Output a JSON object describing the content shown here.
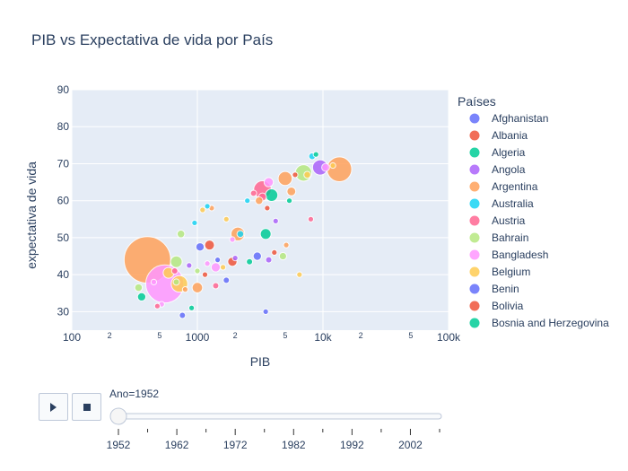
{
  "chart_data": {
    "type": "scatter",
    "title": "PIB vs Expectativa de vida por País",
    "xlabel": "PIB",
    "ylabel": "expectativa de vida",
    "x_scale": "log",
    "xlim": [
      100,
      100000
    ],
    "ylim": [
      25,
      90
    ],
    "x_ticks": [
      "100",
      "1000",
      "10k",
      "100k"
    ],
    "x_minor_ticks": [
      "2",
      "5"
    ],
    "y_ticks": [
      "30",
      "40",
      "50",
      "60",
      "70",
      "80",
      "90"
    ],
    "legend_title": "Países",
    "legend_position": "right",
    "legend": [
      {
        "name": "Afghanistan",
        "color": "#636efa"
      },
      {
        "name": "Albania",
        "color": "#EF553B"
      },
      {
        "name": "Algeria",
        "color": "#00cc96"
      },
      {
        "name": "Angola",
        "color": "#ab63fa"
      },
      {
        "name": "Argentina",
        "color": "#FFA15A"
      },
      {
        "name": "Australia",
        "color": "#19d3f3"
      },
      {
        "name": "Austria",
        "color": "#FF6692"
      },
      {
        "name": "Bahrain",
        "color": "#B6E880"
      },
      {
        "name": "Bangladesh",
        "color": "#FF97FF"
      },
      {
        "name": "Belgium",
        "color": "#FECB52"
      },
      {
        "name": "Benin",
        "color": "#636efa"
      },
      {
        "name": "Bolivia",
        "color": "#EF553B"
      },
      {
        "name": "Bosnia and Herzegovina",
        "color": "#00cc96"
      }
    ],
    "points": [
      {
        "x": 400,
        "y": 44,
        "s": 556,
        "c": "#FFA15A"
      },
      {
        "x": 550,
        "y": 37.5,
        "s": 372,
        "c": "#FF97FF"
      },
      {
        "x": 13500,
        "y": 68.5,
        "s": 158,
        "c": "#FFA15A"
      },
      {
        "x": 3300,
        "y": 63,
        "s": 80,
        "c": "#FF6692"
      },
      {
        "x": 7000,
        "y": 67.5,
        "s": 70,
        "c": "#B6E880"
      },
      {
        "x": 9500,
        "y": 69,
        "s": 60,
        "c": "#ab63fa"
      },
      {
        "x": 5000,
        "y": 66,
        "s": 50,
        "c": "#FFA15A"
      },
      {
        "x": 2100,
        "y": 51,
        "s": 48,
        "c": "#FFA15A"
      },
      {
        "x": 3900,
        "y": 61.5,
        "s": 40,
        "c": "#00cc96"
      },
      {
        "x": 720,
        "y": 37.5,
        "s": 70,
        "c": "#FECB52"
      },
      {
        "x": 680,
        "y": 43.5,
        "s": 35,
        "c": "#B6E880"
      },
      {
        "x": 590,
        "y": 40.5,
        "s": 30,
        "c": "#FECB52"
      },
      {
        "x": 1000,
        "y": 36.5,
        "s": 28,
        "c": "#FFA15A"
      },
      {
        "x": 1250,
        "y": 48,
        "s": 25,
        "c": "#EF553B"
      },
      {
        "x": 3500,
        "y": 51,
        "s": 30,
        "c": "#00cc96"
      },
      {
        "x": 1900,
        "y": 43.5,
        "s": 22,
        "c": "#EF553B"
      },
      {
        "x": 1400,
        "y": 42,
        "s": 22,
        "c": "#FF97FF"
      },
      {
        "x": 1050,
        "y": 47.5,
        "s": 18,
        "c": "#636efa"
      },
      {
        "x": 3700,
        "y": 65,
        "s": 22,
        "c": "#FF97FF"
      },
      {
        "x": 5600,
        "y": 62.5,
        "s": 20,
        "c": "#FFA15A"
      },
      {
        "x": 340,
        "y": 36.5,
        "s": 15,
        "c": "#B6E880"
      },
      {
        "x": 360,
        "y": 34,
        "s": 18,
        "c": "#00cc96"
      },
      {
        "x": 740,
        "y": 51,
        "s": 15,
        "c": "#B6E880"
      },
      {
        "x": 3000,
        "y": 45,
        "s": 18,
        "c": "#636efa"
      },
      {
        "x": 4800,
        "y": 45,
        "s": 14,
        "c": "#B6E880"
      },
      {
        "x": 3300,
        "y": 61,
        "s": 16,
        "c": "#FF6692"
      },
      {
        "x": 3100,
        "y": 60,
        "s": 15,
        "c": "#FFA15A"
      },
      {
        "x": 8200,
        "y": 72,
        "s": 12,
        "c": "#19d3f3"
      },
      {
        "x": 10500,
        "y": 69,
        "s": 16,
        "c": "#FF97FF"
      },
      {
        "x": 7500,
        "y": 67,
        "s": 12,
        "c": "#FECB52"
      },
      {
        "x": 2200,
        "y": 51,
        "s": 12,
        "c": "#19d3f3"
      },
      {
        "x": 4200,
        "y": 54.5,
        "s": 8,
        "c": "#ab63fa"
      },
      {
        "x": 6000,
        "y": 67,
        "s": 8,
        "c": "#EF553B"
      },
      {
        "x": 8800,
        "y": 72.5,
        "s": 8,
        "c": "#00cc96"
      },
      {
        "x": 12000,
        "y": 69.5,
        "s": 8,
        "c": "#FECB52"
      },
      {
        "x": 2500,
        "y": 60,
        "s": 8,
        "c": "#19d3f3"
      },
      {
        "x": 1300,
        "y": 58,
        "s": 8,
        "c": "#FFA15A"
      },
      {
        "x": 1200,
        "y": 58.5,
        "s": 8,
        "c": "#19d3f3"
      },
      {
        "x": 1100,
        "y": 57.5,
        "s": 8,
        "c": "#FECB52"
      },
      {
        "x": 2800,
        "y": 62,
        "s": 10,
        "c": "#FF6692"
      },
      {
        "x": 3600,
        "y": 58,
        "s": 8,
        "c": "#EF553B"
      },
      {
        "x": 5400,
        "y": 60,
        "s": 8,
        "c": "#00cc96"
      },
      {
        "x": 8000,
        "y": 55,
        "s": 8,
        "c": "#FF6692"
      },
      {
        "x": 760,
        "y": 29,
        "s": 10,
        "c": "#636efa"
      },
      {
        "x": 520,
        "y": 32,
        "s": 8,
        "c": "#FF97FF"
      },
      {
        "x": 480,
        "y": 31.5,
        "s": 8,
        "c": "#FF6692"
      },
      {
        "x": 900,
        "y": 31,
        "s": 8,
        "c": "#00cc96"
      },
      {
        "x": 1700,
        "y": 38.5,
        "s": 10,
        "c": "#636efa"
      },
      {
        "x": 1400,
        "y": 37,
        "s": 10,
        "c": "#FF6692"
      },
      {
        "x": 1150,
        "y": 40,
        "s": 8,
        "c": "#EF553B"
      },
      {
        "x": 1000,
        "y": 41,
        "s": 8,
        "c": "#B6E880"
      },
      {
        "x": 660,
        "y": 41,
        "s": 10,
        "c": "#FF6692"
      },
      {
        "x": 860,
        "y": 42.5,
        "s": 8,
        "c": "#ab63fa"
      },
      {
        "x": 1200,
        "y": 43,
        "s": 8,
        "c": "#FF97FF"
      },
      {
        "x": 1600,
        "y": 42,
        "s": 8,
        "c": "#FECB52"
      },
      {
        "x": 2600,
        "y": 43.5,
        "s": 10,
        "c": "#00cc96"
      },
      {
        "x": 3700,
        "y": 44,
        "s": 10,
        "c": "#ab63fa"
      },
      {
        "x": 4100,
        "y": 46,
        "s": 8,
        "c": "#EF553B"
      },
      {
        "x": 5100,
        "y": 48,
        "s": 8,
        "c": "#FFA15A"
      },
      {
        "x": 1900,
        "y": 49.5,
        "s": 8,
        "c": "#FF97FF"
      },
      {
        "x": 1450,
        "y": 44,
        "s": 8,
        "c": "#636efa"
      },
      {
        "x": 3500,
        "y": 30,
        "s": 8,
        "c": "#636efa"
      },
      {
        "x": 6500,
        "y": 40,
        "s": 8,
        "c": "#FECB52"
      },
      {
        "x": 2000,
        "y": 44.5,
        "s": 8,
        "c": "#ab63fa"
      },
      {
        "x": 680,
        "y": 38,
        "s": 10,
        "c": "#B6E880"
      },
      {
        "x": 800,
        "y": 36,
        "s": 8,
        "c": "#FFA15A"
      },
      {
        "x": 450,
        "y": 38,
        "s": 8,
        "c": "#FF97FF"
      },
      {
        "x": 1700,
        "y": 55,
        "s": 8,
        "c": "#FECB52"
      },
      {
        "x": 950,
        "y": 54,
        "s": 8,
        "c": "#19d3f3"
      }
    ]
  },
  "slider": {
    "current_label": "Ano=1952",
    "value": 1952,
    "range": [
      1952,
      2007
    ],
    "ticks": [
      "1952",
      "1962",
      "1972",
      "1982",
      "1992",
      "2002"
    ]
  },
  "controls": {
    "play_icon": "play-icon",
    "stop_icon": "stop-icon"
  }
}
